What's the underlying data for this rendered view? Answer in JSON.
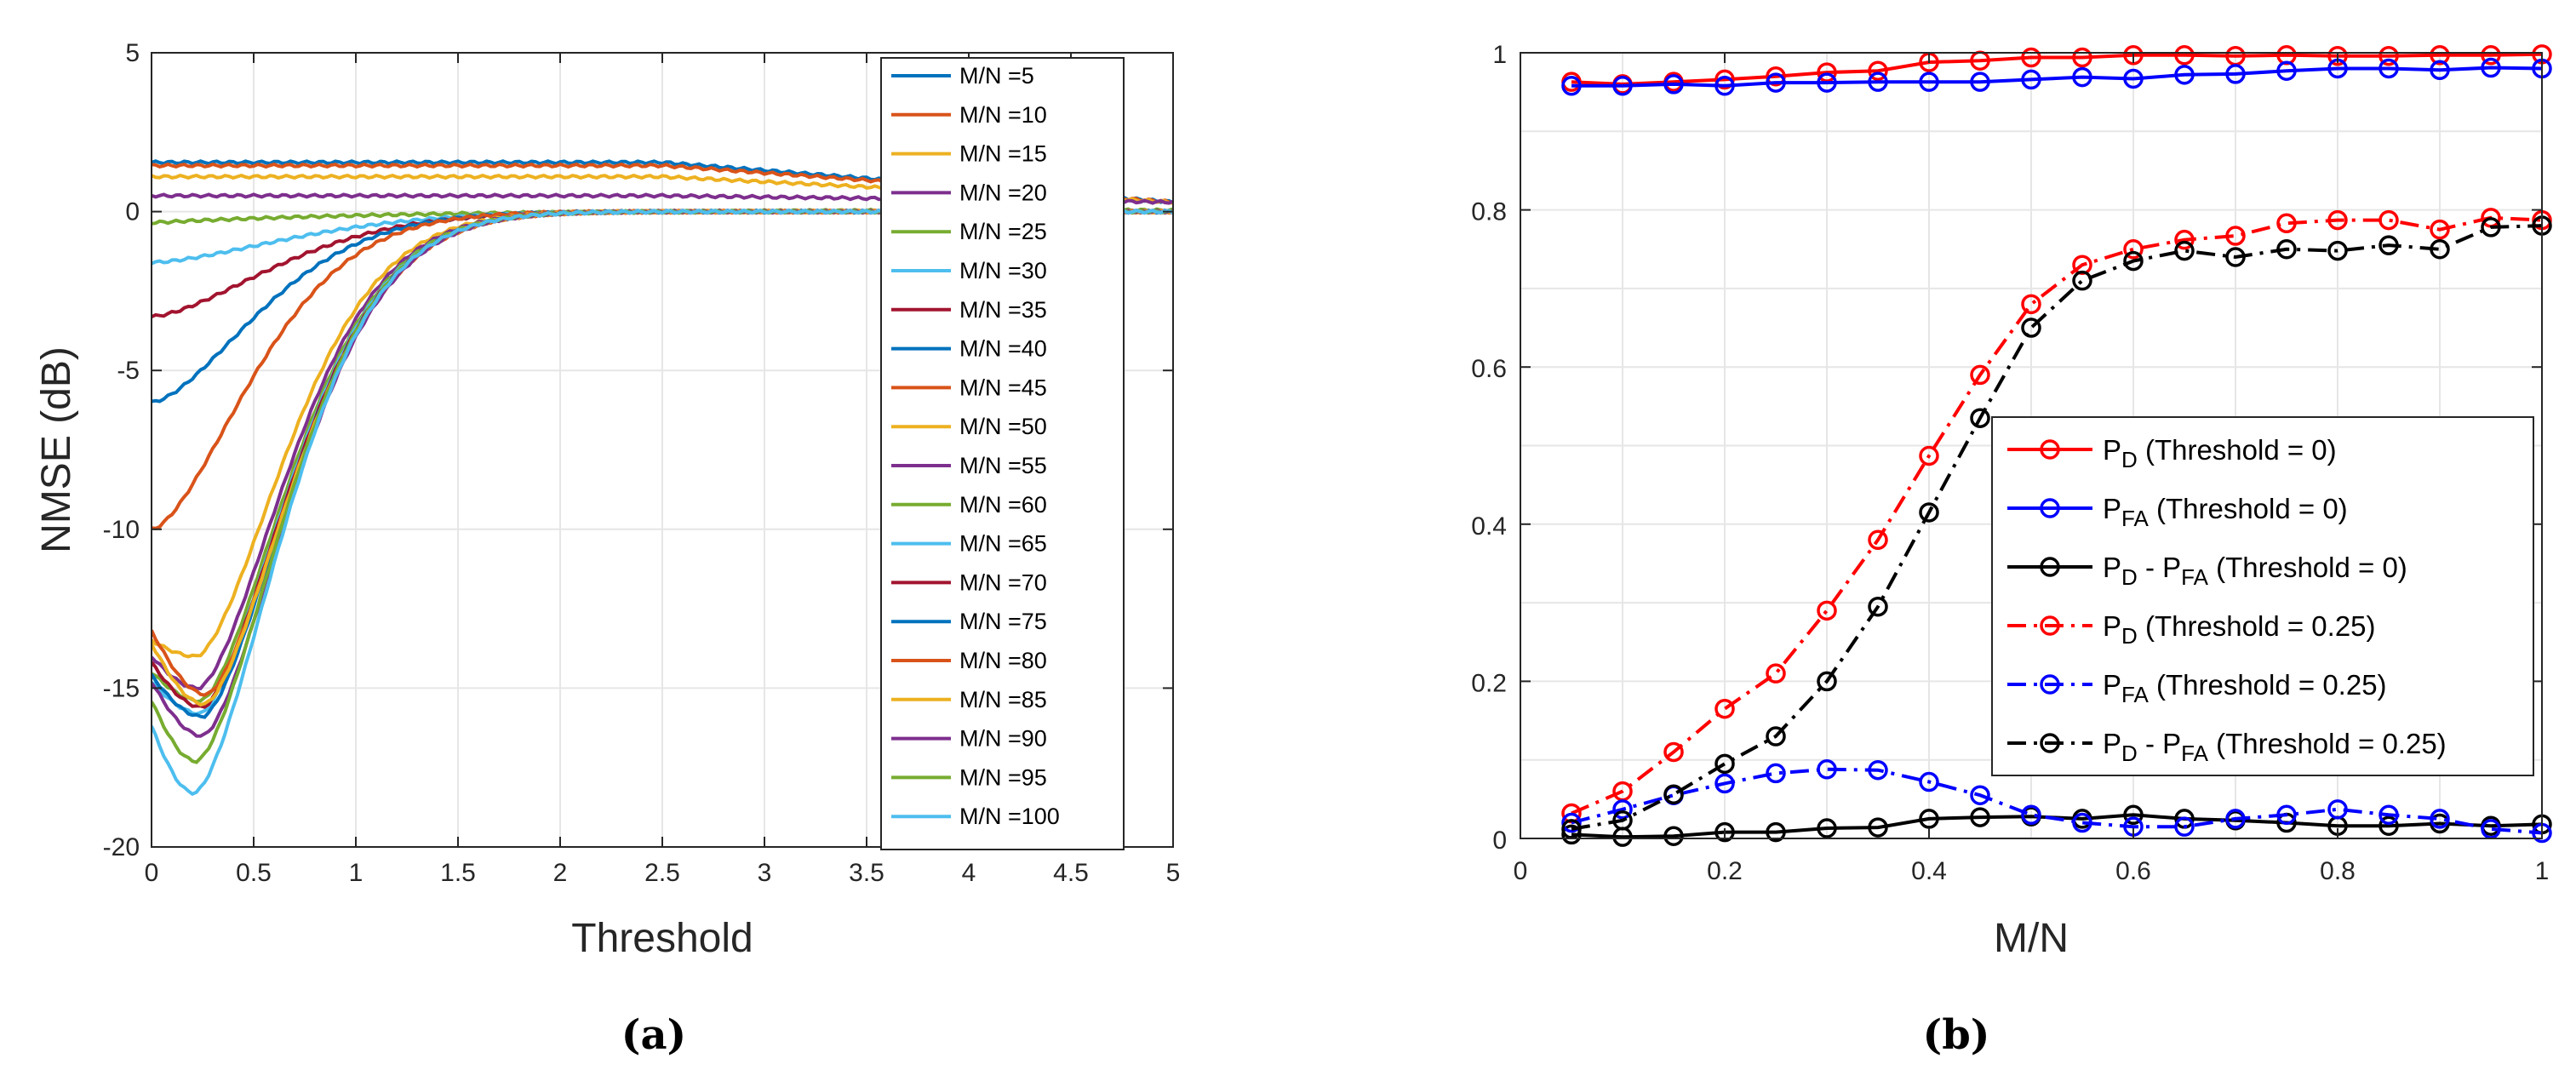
{
  "chart_data": [
    {
      "id": "a",
      "type": "line",
      "caption": "(a)",
      "xlabel": "Threshold",
      "ylabel": "NMSE (dB)",
      "xlim": [
        0,
        5
      ],
      "ylim": [
        -20,
        5
      ],
      "xticks": [
        "0",
        "0.5",
        "1",
        "1.5",
        "2",
        "2.5",
        "3",
        "3.5",
        "4",
        "4.5",
        "5"
      ],
      "yticks": [
        "-20",
        "-15",
        "-10",
        "-5",
        "0",
        "5"
      ],
      "grid": true,
      "legend_position": "top-right",
      "series": [
        {
          "name": "M/N =5",
          "color": "#0072BD",
          "start": 1.55,
          "minval": 1.55,
          "minx": 0.0,
          "bend": 1.5,
          "plateau": 0.4
        },
        {
          "name": "M/N =10",
          "color": "#D95319",
          "start": 1.45,
          "minval": 1.45,
          "minx": 0.0,
          "bend": 1.4,
          "plateau": 0.1
        },
        {
          "name": "M/N =15",
          "color": "#EDB120",
          "start": 1.1,
          "minval": 1.1,
          "minx": 0.0,
          "bend": 1.4,
          "plateau": 0.05
        },
        {
          "name": "M/N =20",
          "color": "#7E2F8E",
          "start": 0.5,
          "minval": 0.5,
          "minx": 0.0,
          "bend": 1.2,
          "plateau": 0.0
        },
        {
          "name": "M/N =25",
          "color": "#77AC30",
          "start": -0.35,
          "minval": -0.35,
          "minx": 0.0,
          "bend": 1.0,
          "plateau": 0.0
        },
        {
          "name": "M/N =30",
          "color": "#4DBEEE",
          "start": -1.6,
          "minval": -1.6,
          "minx": 0.0,
          "bend": 0.9,
          "plateau": 0.0
        },
        {
          "name": "M/N =35",
          "color": "#A2142F",
          "start": -3.3,
          "minval": -3.3,
          "minx": 0.0,
          "bend": 0.8,
          "plateau": 0.0
        },
        {
          "name": "M/N =40",
          "color": "#0072BD",
          "start": -6.0,
          "minval": -6.0,
          "minx": 0.0,
          "bend": 0.7,
          "plateau": 0.0
        },
        {
          "name": "M/N =45",
          "color": "#D95319",
          "start": -10.0,
          "minval": -10.0,
          "minx": 0.0,
          "bend": 0.65,
          "plateau": 0.0
        },
        {
          "name": "M/N =50",
          "color": "#EDB120",
          "start": -13.5,
          "minval": -14.0,
          "minx": 0.22,
          "bend": 0.6,
          "plateau": 0.0
        },
        {
          "name": "M/N =55",
          "color": "#7E2F8E",
          "start": -14.0,
          "minval": -15.0,
          "minx": 0.23,
          "bend": 0.6,
          "plateau": 0.0
        },
        {
          "name": "M/N =60",
          "color": "#77AC30",
          "start": -14.5,
          "minval": -15.4,
          "minx": 0.24,
          "bend": 0.6,
          "plateau": 0.0
        },
        {
          "name": "M/N =65",
          "color": "#4DBEEE",
          "start": -14.8,
          "minval": -15.8,
          "minx": 0.24,
          "bend": 0.6,
          "plateau": 0.0
        },
        {
          "name": "M/N =70",
          "color": "#A2142F",
          "start": -14.2,
          "minval": -15.6,
          "minx": 0.25,
          "bend": 0.6,
          "plateau": 0.0
        },
        {
          "name": "M/N =75",
          "color": "#0072BD",
          "start": -14.6,
          "minval": -15.9,
          "minx": 0.25,
          "bend": 0.6,
          "plateau": 0.0
        },
        {
          "name": "M/N =80",
          "color": "#D95319",
          "start": -13.2,
          "minval": -15.2,
          "minx": 0.27,
          "bend": 0.6,
          "plateau": 0.0
        },
        {
          "name": "M/N =85",
          "color": "#EDB120",
          "start": -13.6,
          "minval": -15.5,
          "minx": 0.26,
          "bend": 0.6,
          "plateau": 0.0
        },
        {
          "name": "M/N =90",
          "color": "#7E2F8E",
          "start": -14.8,
          "minval": -16.5,
          "minx": 0.25,
          "bend": 0.6,
          "plateau": 0.0
        },
        {
          "name": "M/N =95",
          "color": "#77AC30",
          "start": -15.4,
          "minval": -17.3,
          "minx": 0.22,
          "bend": 0.6,
          "plateau": 0.0
        },
        {
          "name": "M/N =100",
          "color": "#4DBEEE",
          "start": -16.2,
          "minval": -18.3,
          "minx": 0.21,
          "bend": 0.6,
          "plateau": 0.0
        }
      ]
    },
    {
      "id": "b",
      "type": "line",
      "caption": "(b)",
      "xlabel": "M/N",
      "ylabel": "",
      "xlim": [
        0,
        1
      ],
      "ylim": [
        0,
        1
      ],
      "xticks": [
        "0",
        "0.2",
        "0.4",
        "0.6",
        "0.8",
        "1"
      ],
      "yticks": [
        "0",
        "0.2",
        "0.4",
        "0.6",
        "0.8",
        "1"
      ],
      "grid": true,
      "legend_position": "center-right",
      "x": [
        0.05,
        0.1,
        0.15,
        0.2,
        0.25,
        0.3,
        0.35,
        0.4,
        0.45,
        0.5,
        0.55,
        0.6,
        0.65,
        0.7,
        0.75,
        0.8,
        0.85,
        0.9,
        0.95,
        1.0
      ],
      "series": [
        {
          "name": "P_D (Threshold = 0)",
          "label_main": "P",
          "label_sub": "D",
          "label_rest": " (Threshold = 0)",
          "color": "#FF0000",
          "style": "solid",
          "values": [
            0.963,
            0.96,
            0.963,
            0.966,
            0.97,
            0.975,
            0.977,
            0.988,
            0.99,
            0.994,
            0.994,
            0.997,
            0.997,
            0.996,
            0.997,
            0.996,
            0.996,
            0.997,
            0.997,
            0.998
          ]
        },
        {
          "name": "P_FA (Threshold = 0)",
          "label_main": "P",
          "label_sub": "FA",
          "label_rest": " (Threshold = 0)",
          "color": "#0000FF",
          "style": "solid",
          "values": [
            0.958,
            0.958,
            0.96,
            0.958,
            0.962,
            0.962,
            0.963,
            0.963,
            0.963,
            0.966,
            0.969,
            0.967,
            0.972,
            0.973,
            0.977,
            0.98,
            0.98,
            0.978,
            0.981,
            0.98
          ]
        },
        {
          "name": "P_D - P_FA (Threshold = 0)",
          "label_main": "P",
          "label_sub": "D",
          "label_rest": " - P",
          "label_sub2": "FA",
          "label_rest2": " (Threshold = 0)",
          "color": "#000000",
          "style": "solid",
          "values": [
            0.005,
            0.002,
            0.003,
            0.008,
            0.008,
            0.013,
            0.014,
            0.025,
            0.027,
            0.028,
            0.025,
            0.03,
            0.025,
            0.023,
            0.02,
            0.016,
            0.016,
            0.019,
            0.016,
            0.018
          ]
        },
        {
          "name": "P_D (Threshold = 0.25)",
          "label_main": "P",
          "label_sub": "D",
          "label_rest": " (Threshold = 0.25)",
          "color": "#FF0000",
          "style": "dashdot",
          "values": [
            0.032,
            0.06,
            0.11,
            0.165,
            0.21,
            0.29,
            0.38,
            0.487,
            0.59,
            0.68,
            0.73,
            0.75,
            0.762,
            0.767,
            0.783,
            0.787,
            0.787,
            0.775,
            0.79,
            0.787
          ]
        },
        {
          "name": "P_FA (Threshold = 0.25)",
          "label_main": "P",
          "label_sub": "FA",
          "label_rest": " (Threshold = 0.25)",
          "color": "#0000FF",
          "style": "dashdot",
          "values": [
            0.02,
            0.037,
            0.055,
            0.07,
            0.083,
            0.088,
            0.087,
            0.072,
            0.055,
            0.03,
            0.02,
            0.015,
            0.015,
            0.025,
            0.03,
            0.037,
            0.03,
            0.025,
            0.012,
            0.007
          ]
        },
        {
          "name": "P_D - P_FA (Threshold = 0.25)",
          "label_main": "P",
          "label_sub": "D",
          "label_rest": " - P",
          "label_sub2": "FA",
          "label_rest2": " (Threshold = 0.25)",
          "color": "#000000",
          "style": "dashdot",
          "values": [
            0.012,
            0.023,
            0.056,
            0.095,
            0.13,
            0.2,
            0.295,
            0.415,
            0.535,
            0.65,
            0.71,
            0.735,
            0.748,
            0.74,
            0.75,
            0.748,
            0.755,
            0.75,
            0.778,
            0.78
          ]
        }
      ]
    }
  ]
}
